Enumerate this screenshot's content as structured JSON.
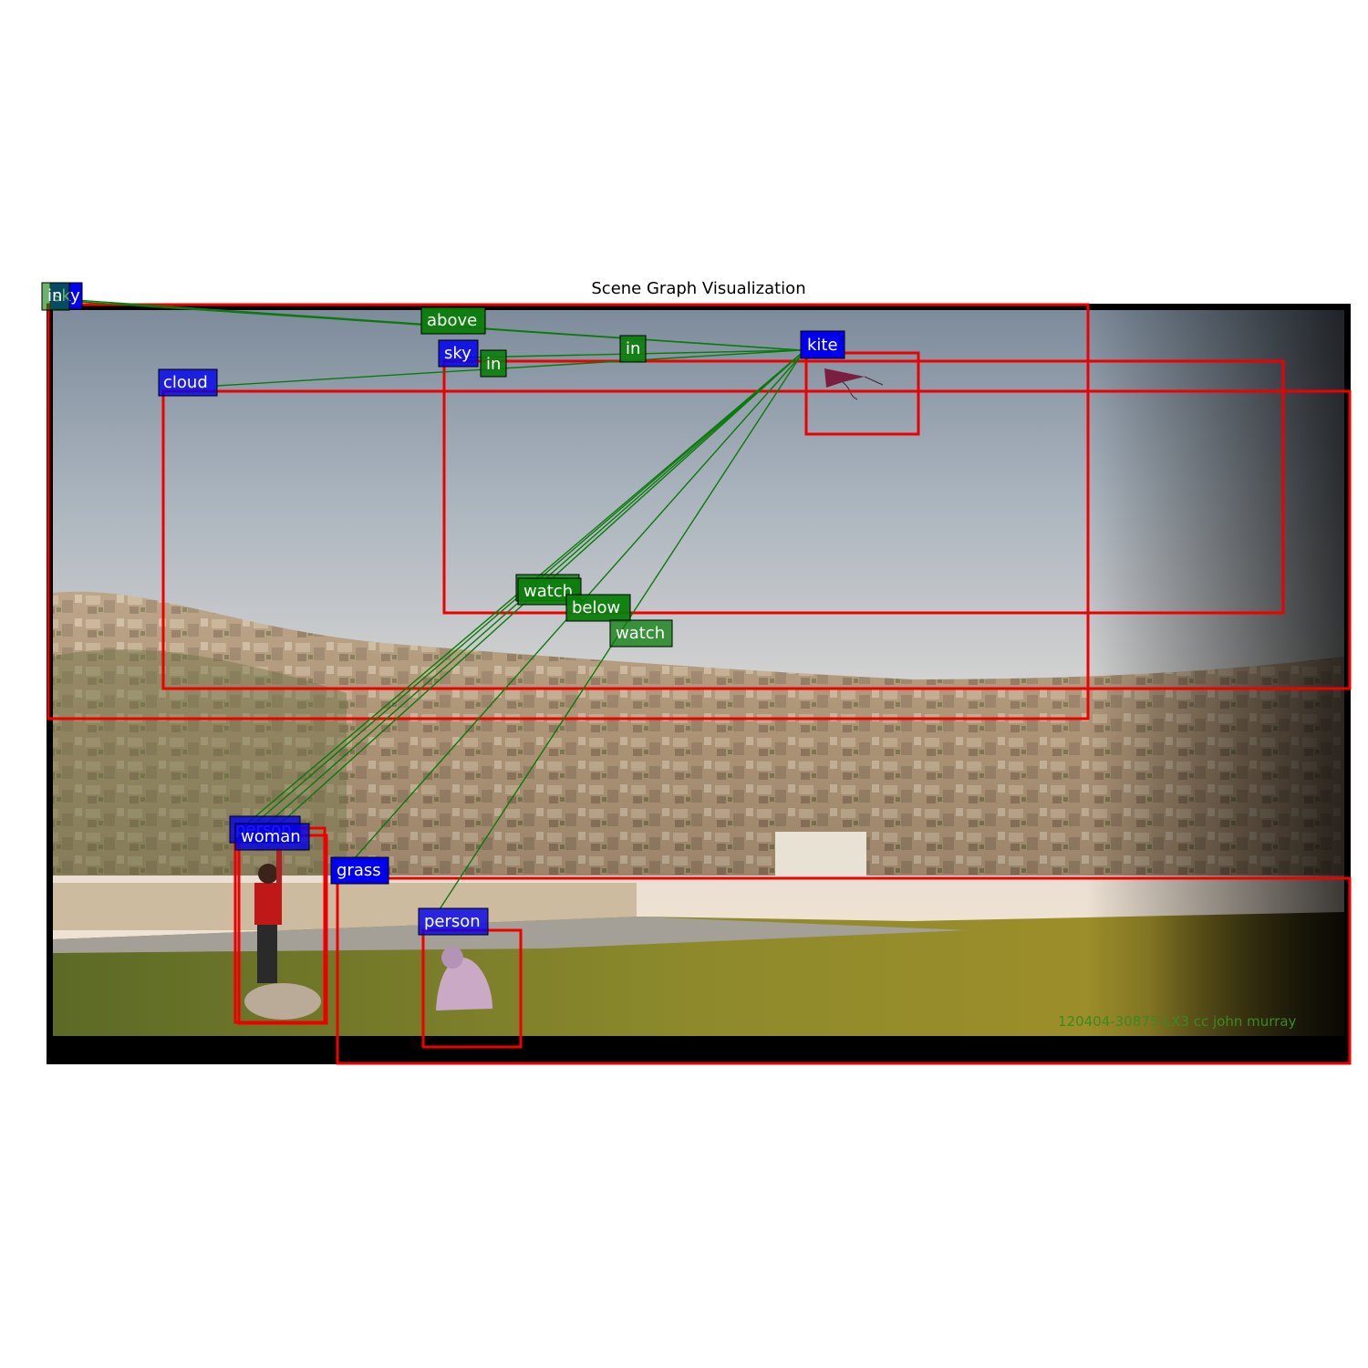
{
  "title": "Scene Graph Visualization",
  "watermark": "120404-30875-LX3 cc john murray",
  "colors": {
    "box": "#ee0000",
    "object_label_bg": "#0000ee",
    "relation_label_bg": "#0a7d0a",
    "edge": "#0a7a0a",
    "frame": "#000000"
  },
  "objects": [
    {
      "id": "sky-1",
      "label": "sky"
    },
    {
      "id": "kite",
      "label": "kite"
    },
    {
      "id": "sky-2",
      "label": "sky"
    },
    {
      "id": "cloud",
      "label": "cloud"
    },
    {
      "id": "person-1",
      "label": "person"
    },
    {
      "id": "woman",
      "label": "woman"
    },
    {
      "id": "grass",
      "label": "grass"
    },
    {
      "id": "person-2",
      "label": "person"
    }
  ],
  "relations": [
    {
      "id": "rel-in-topleft",
      "label": "in",
      "subject": "kite",
      "object": "sky-1"
    },
    {
      "id": "rel-above",
      "label": "above",
      "subject": "kite",
      "object": "sky-1"
    },
    {
      "id": "rel-in-1",
      "label": "in",
      "subject": "kite",
      "object": "sky-2"
    },
    {
      "id": "rel-in-2",
      "label": "in",
      "subject": "kite",
      "object": "cloud"
    },
    {
      "id": "rel-watch-1",
      "label": "watch",
      "subject": "person-1",
      "object": "kite"
    },
    {
      "id": "rel-watch-2",
      "label": "watch",
      "subject": "woman",
      "object": "kite"
    },
    {
      "id": "rel-below",
      "label": "below",
      "subject": "grass",
      "object": "kite"
    },
    {
      "id": "rel-watch-3",
      "label": "watch",
      "subject": "person-2",
      "object": "kite"
    }
  ]
}
